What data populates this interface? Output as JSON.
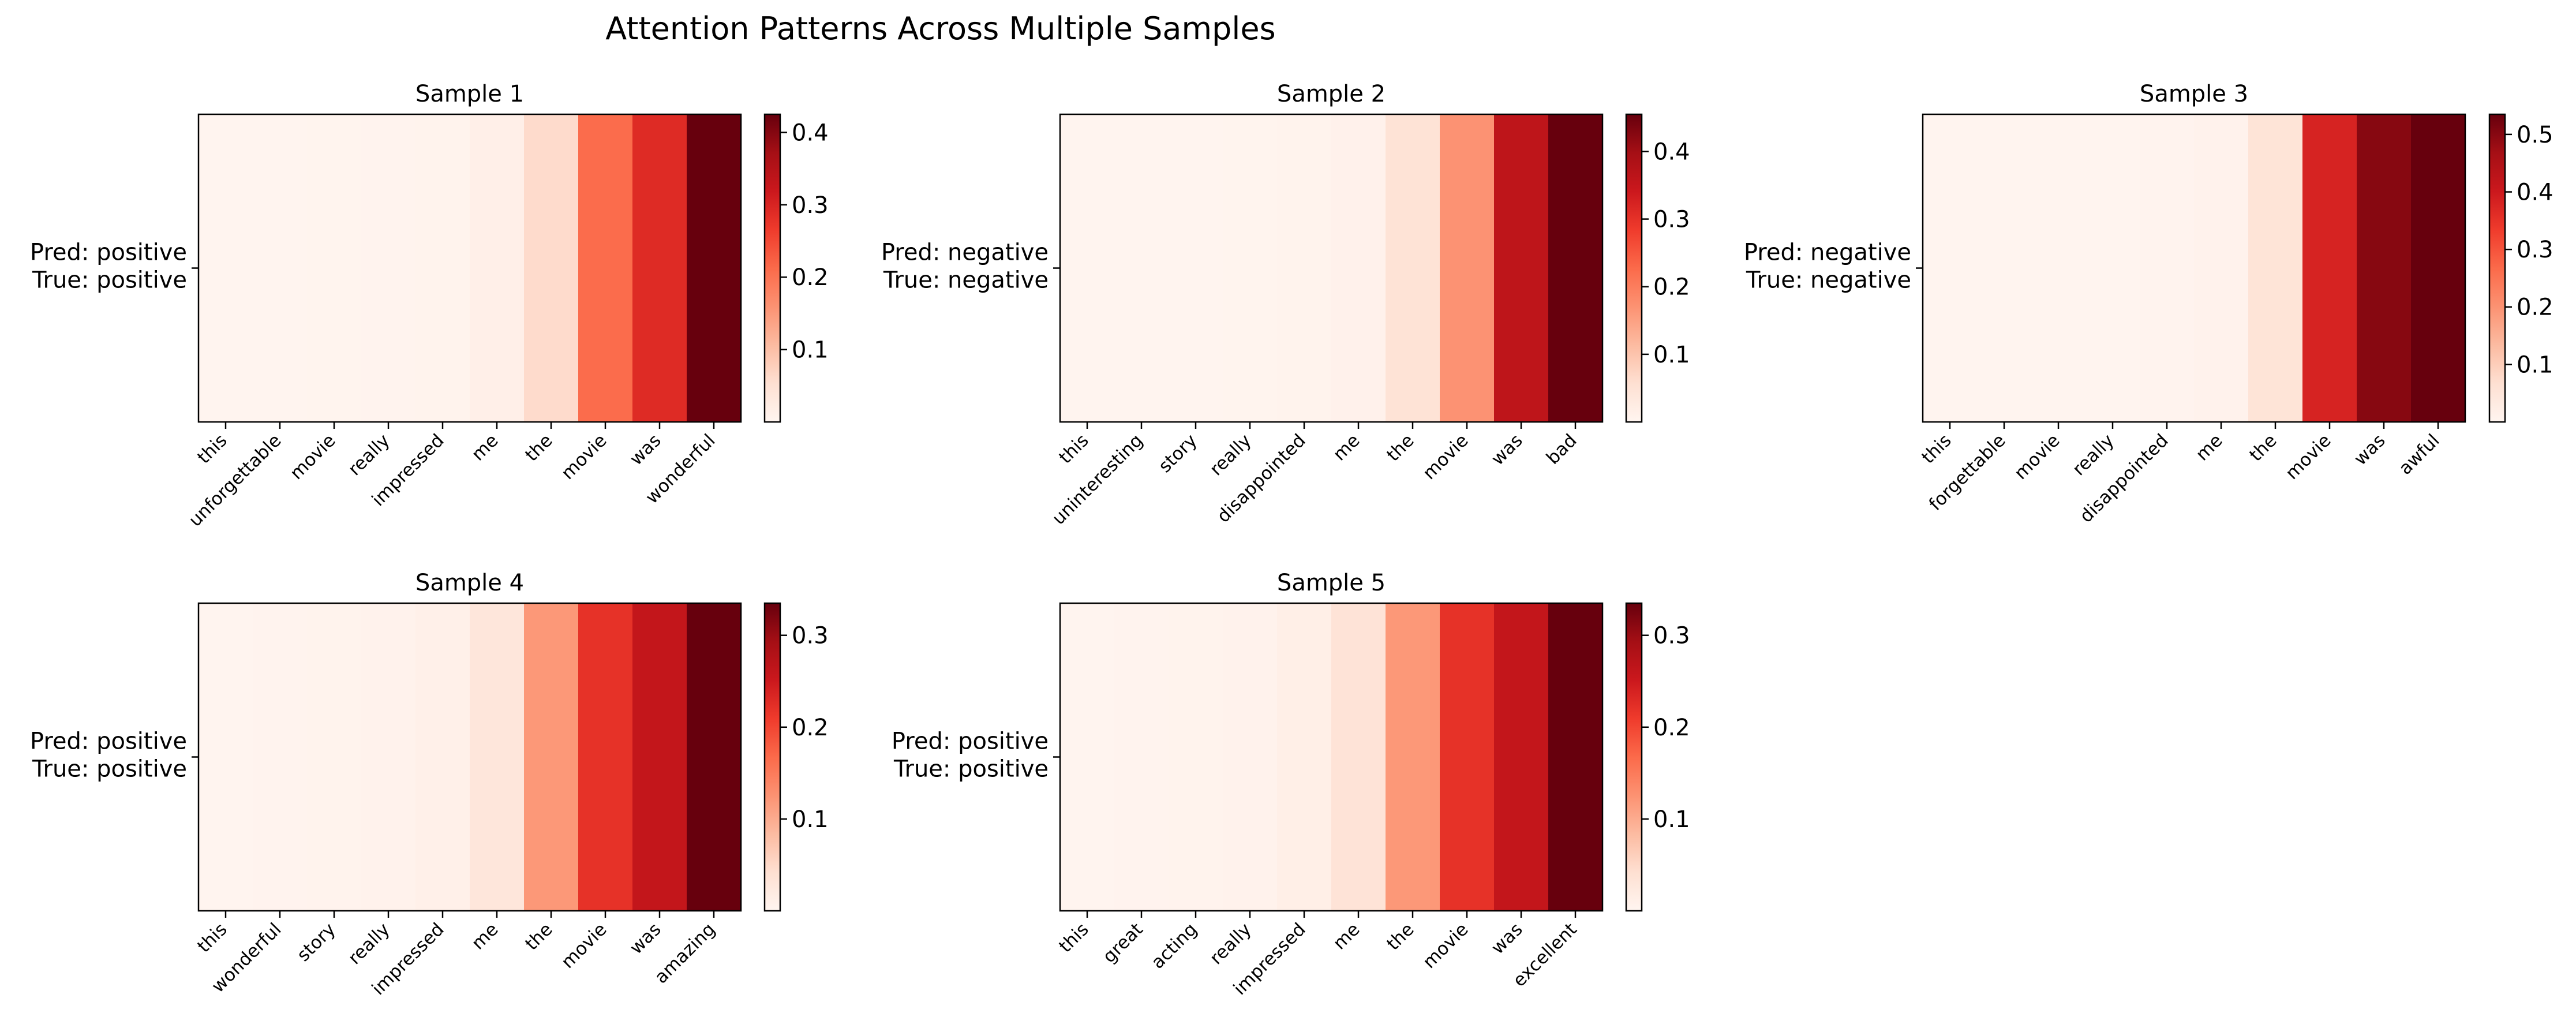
{
  "figure": {
    "title": "Attention Patterns Across Multiple Samples"
  },
  "colormap": {
    "name": "Reds",
    "stops": [
      "#fff5f0",
      "#fee0d2",
      "#fcbba1",
      "#fc9272",
      "#fb6a4a",
      "#ef3b2c",
      "#cb181d",
      "#a50f15",
      "#67000d"
    ]
  },
  "chart_data": [
    {
      "type": "heatmap",
      "title": "Sample 1",
      "ylabel_lines": [
        "Pred: positive",
        "True: positive"
      ],
      "x": [
        "this",
        "unforgettable",
        "movie",
        "really",
        "impressed",
        "me",
        "the",
        "movie",
        "was",
        "wonderful"
      ],
      "values": [
        0.002,
        0.002,
        0.003,
        0.004,
        0.006,
        0.015,
        0.06,
        0.21,
        0.29,
        0.425
      ],
      "colorbar": {
        "range": [
          0,
          0.425
        ],
        "ticks": [
          0.1,
          0.2,
          0.3,
          0.4
        ]
      },
      "grid": false
    },
    {
      "type": "heatmap",
      "title": "Sample 2",
      "ylabel_lines": [
        "Pred: negative",
        "True: negative"
      ],
      "x": [
        "this",
        "uninteresting",
        "story",
        "really",
        "disappointed",
        "me",
        "the",
        "movie",
        "was",
        "bad"
      ],
      "values": [
        0.002,
        0.002,
        0.002,
        0.003,
        0.005,
        0.01,
        0.05,
        0.17,
        0.36,
        0.455
      ],
      "colorbar": {
        "range": [
          0,
          0.455
        ],
        "ticks": [
          0.1,
          0.2,
          0.3,
          0.4
        ]
      },
      "grid": false
    },
    {
      "type": "heatmap",
      "title": "Sample 3",
      "ylabel_lines": [
        "Pred: negative",
        "True: negative"
      ],
      "x": [
        "this",
        "forgettable",
        "movie",
        "really",
        "disappointed",
        "me",
        "the",
        "movie",
        "was",
        "awful"
      ],
      "values": [
        0.002,
        0.002,
        0.002,
        0.003,
        0.005,
        0.01,
        0.055,
        0.38,
        0.5,
        0.535
      ],
      "colorbar": {
        "range": [
          0,
          0.535
        ],
        "ticks": [
          0.1,
          0.2,
          0.3,
          0.4,
          0.5
        ]
      },
      "grid": false
    },
    {
      "type": "heatmap",
      "title": "Sample 4",
      "ylabel_lines": [
        "Pred: positive",
        "True: positive"
      ],
      "x": [
        "this",
        "wonderful",
        "story",
        "really",
        "impressed",
        "me",
        "the",
        "movie",
        "was",
        "amazing"
      ],
      "values": [
        0.002,
        0.003,
        0.004,
        0.006,
        0.01,
        0.03,
        0.12,
        0.22,
        0.26,
        0.335
      ],
      "colorbar": {
        "range": [
          0,
          0.335
        ],
        "ticks": [
          0.1,
          0.2,
          0.3
        ]
      },
      "grid": false
    },
    {
      "type": "heatmap",
      "title": "Sample 5",
      "ylabel_lines": [
        "Pred: positive",
        "True: positive"
      ],
      "x": [
        "this",
        "great",
        "acting",
        "really",
        "impressed",
        "me",
        "the",
        "movie",
        "was",
        "excellent"
      ],
      "values": [
        0.002,
        0.003,
        0.004,
        0.006,
        0.012,
        0.035,
        0.12,
        0.22,
        0.26,
        0.335
      ],
      "colorbar": {
        "range": [
          0,
          0.335
        ],
        "ticks": [
          0.1,
          0.2,
          0.3
        ]
      },
      "grid": false
    }
  ]
}
